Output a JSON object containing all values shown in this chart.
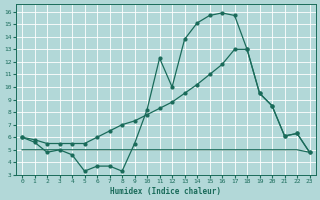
{
  "bg_color": "#b2d8d8",
  "grid_color": "#d4eaea",
  "line_color": "#1a6b5a",
  "xlabel": "Humidex (Indice chaleur)",
  "xlim": [
    -0.5,
    23.5
  ],
  "ylim": [
    3,
    16.6
  ],
  "yticks": [
    3,
    4,
    5,
    6,
    7,
    8,
    9,
    10,
    11,
    12,
    13,
    14,
    15,
    16
  ],
  "xticks": [
    0,
    1,
    2,
    3,
    4,
    5,
    6,
    7,
    8,
    9,
    10,
    11,
    12,
    13,
    14,
    15,
    16,
    17,
    18,
    19,
    20,
    21,
    22,
    23
  ],
  "line1_x": [
    0,
    1,
    2,
    3,
    4,
    5,
    6,
    7,
    8,
    9,
    10,
    11,
    12,
    13,
    14,
    15,
    16,
    17,
    18,
    19,
    20,
    21,
    22,
    23
  ],
  "line1_y": [
    6.0,
    5.6,
    4.8,
    5.0,
    4.6,
    3.3,
    3.7,
    3.7,
    3.3,
    5.5,
    8.2,
    12.3,
    10.0,
    13.8,
    15.1,
    15.7,
    15.9,
    15.7,
    13.0,
    9.5,
    8.5,
    6.1,
    6.3,
    4.8
  ],
  "line2_x": [
    0,
    1,
    2,
    3,
    4,
    5,
    6,
    7,
    8,
    9,
    10,
    11,
    12,
    13,
    14,
    15,
    16,
    17,
    18,
    19,
    20,
    21,
    22,
    23
  ],
  "line2_y": [
    6.0,
    5.8,
    5.5,
    5.5,
    5.5,
    5.5,
    6.0,
    6.5,
    7.0,
    7.3,
    7.8,
    8.3,
    8.8,
    9.5,
    10.2,
    11.0,
    11.8,
    13.0,
    13.0,
    9.5,
    8.5,
    6.1,
    6.3,
    4.8
  ],
  "line3_x": [
    0,
    9,
    10,
    11,
    12,
    13,
    14,
    15,
    16,
    17,
    18,
    19,
    20,
    21,
    22,
    23
  ],
  "line3_y": [
    5.0,
    5.0,
    5.0,
    5.0,
    5.0,
    5.0,
    5.0,
    5.0,
    5.0,
    5.0,
    5.0,
    5.0,
    5.0,
    5.0,
    5.0,
    4.8
  ]
}
